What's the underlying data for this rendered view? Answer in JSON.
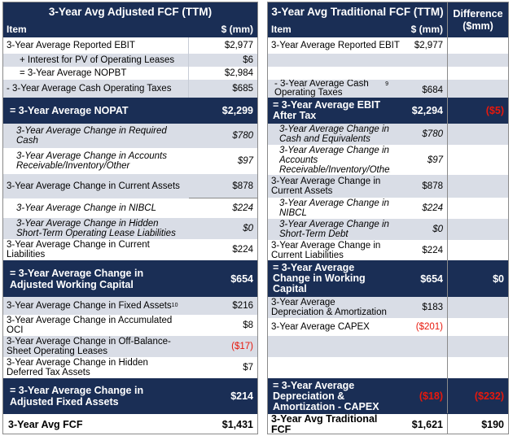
{
  "left": {
    "title": "3-Year Avg Adjusted FCF (TTM)",
    "col_item": "Item",
    "col_value": "$ (mm)",
    "rows": [
      {
        "label": "3-Year Average Reported EBIT",
        "value": "$2,977"
      },
      {
        "label": "+ Interest for PV of Operating Leases",
        "value": "$6"
      },
      {
        "label": "= 3-Year Average NOPBT",
        "value": "$2,984"
      },
      {
        "label": "- 3-Year Average Cash Operating Taxes",
        "value": "$685"
      },
      {
        "label": "= 3-Year Average NOPAT",
        "value": "$2,299"
      },
      {
        "label": "3-Year Average Change in Required Cash",
        "value": "$780"
      },
      {
        "label": "3-Year Average Change in Accounts Receivable/Inventory/Other",
        "value": "$97"
      },
      {
        "label": "3-Year Average Change in Current Assets",
        "value": "$878"
      },
      {
        "label": "3-Year Average Change in NIBCL",
        "value": "$224"
      },
      {
        "label": "3-Year Average Change in Hidden Short-Term Operating Lease Liabilities",
        "value": "$0"
      },
      {
        "label": "3-Year Average Change in Current Liabilities",
        "value": "$224"
      },
      {
        "label": "= 3-Year Average Change in Adjusted Working Capital",
        "value": "$654"
      },
      {
        "label": "3-Year Average Change in Fixed Assets",
        "sup": "10",
        "value": "$216"
      },
      {
        "label": "3-Year Average Change in Accumulated OCI",
        "value": "$8"
      },
      {
        "label": "3-Year Average Change in Off-Balance-Sheet Operating Leases",
        "value": "($17)"
      },
      {
        "label": "3-Year Average Change in Hidden Deferred Tax Assets",
        "value": "$7"
      },
      {
        "label": "= 3-Year Average Change in Adjusted Fixed Assets",
        "value": "$214"
      },
      {
        "label": "3-Year Avg FCF",
        "value": "$1,431"
      }
    ]
  },
  "right": {
    "title": "3-Year Avg Traditional FCF (TTM)",
    "col_item": "Item",
    "col_value": "$ (mm)",
    "col_diff": "Difference ($mm)",
    "rows": [
      {
        "label": "3-Year Average Reported EBIT",
        "value": "$2,977",
        "diff": ""
      },
      {
        "label": "",
        "value": "",
        "diff": ""
      },
      {
        "label": "",
        "value": "",
        "diff": ""
      },
      {
        "label": "- 3-Year Average Cash Operating Taxes",
        "sup": "9",
        "value": "$684",
        "diff": ""
      },
      {
        "label": "= 3-Year Average EBIT After Tax",
        "value": "$2,294",
        "diff": "($5)"
      },
      {
        "label": "3-Year Average Change in Cash and Equivalents",
        "value": "$780",
        "diff": ""
      },
      {
        "label": "3-Year Average Change in Accounts Receivable/Inventory/Other",
        "value": "$97",
        "diff": ""
      },
      {
        "label": "3-Year Average Change in Current Assets",
        "value": "$878",
        "diff": ""
      },
      {
        "label": "3-Year Average Change in NIBCL",
        "value": "$224",
        "diff": ""
      },
      {
        "label": "3-Year Average Change in Short-Term Debt",
        "value": "$0",
        "diff": ""
      },
      {
        "label": "3-Year Average Change in Current Liabilities",
        "value": "$224",
        "diff": ""
      },
      {
        "label": "= 3-Year Average Change in Working Capital",
        "value": "$654",
        "diff": "$0"
      },
      {
        "label": "3-Year Average Depreciation & Amortization",
        "value": "$183",
        "diff": ""
      },
      {
        "label": "3-Year Average CAPEX",
        "value": "($201)",
        "diff": ""
      },
      {
        "label": "",
        "value": "",
        "diff": ""
      },
      {
        "label": "",
        "value": "",
        "diff": ""
      },
      {
        "label": "= 3-Year Average Depreciation & Amortization - CAPEX",
        "value": "($18)",
        "diff": "($232)"
      },
      {
        "label": "3-Year Avg Traditional FCF",
        "value": "$1,621",
        "diff": "$190"
      }
    ]
  }
}
